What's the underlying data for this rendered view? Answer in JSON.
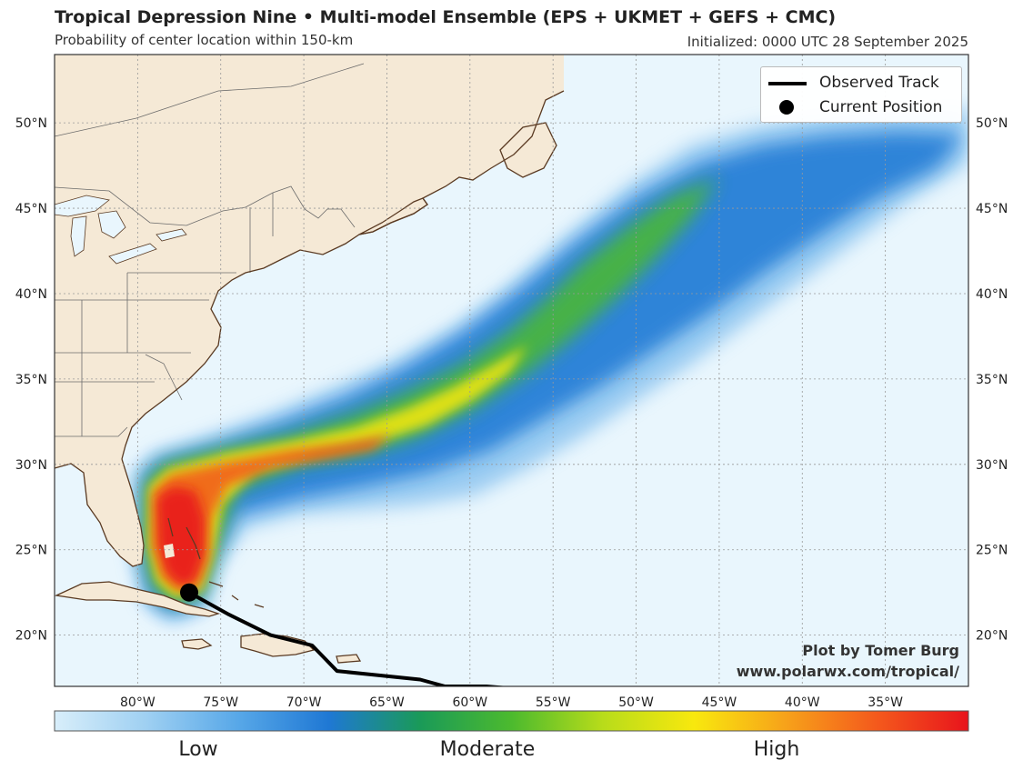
{
  "header": {
    "title": "Tropical Depression Nine • Multi-model Ensemble (EPS + UKMET + GEFS + CMC)",
    "subtitle": "Probability of center location within 150-km",
    "initialized": "Initialized: 0000 UTC 28 September 2025"
  },
  "legend": {
    "observed_track": "Observed Track",
    "current_position": "Current Position"
  },
  "credit": {
    "line1": "Plot by Tomer Burg",
    "line2": "www.polarwx.com/tropical/"
  },
  "axes": {
    "lat_labels": [
      "20°N",
      "25°N",
      "30°N",
      "35°N",
      "40°N",
      "45°N",
      "50°N"
    ],
    "lat_values": [
      20,
      25,
      30,
      35,
      40,
      45,
      50
    ],
    "lon_labels": [
      "80°W",
      "75°W",
      "70°W",
      "65°W",
      "60°W",
      "55°W",
      "50°W",
      "45°W",
      "40°W",
      "35°W"
    ],
    "lon_values": [
      -80,
      -75,
      -70,
      -65,
      -60,
      -55,
      -50,
      -45,
      -40,
      -35
    ],
    "lon_range": [
      -85,
      -30
    ],
    "lat_range": [
      17,
      54
    ]
  },
  "colorbar": {
    "low": "Low",
    "moderate": "Moderate",
    "high": "High",
    "colors": [
      "#d8eefa",
      "#9fd0f2",
      "#58a8e8",
      "#1f78d4",
      "#1a9a58",
      "#4cba2e",
      "#b8dc1a",
      "#f8e80e",
      "#f7a21a",
      "#f4591c",
      "#e8141c"
    ]
  },
  "colors": {
    "ocean": "#e9f6fd",
    "land": "#f5e9d6",
    "coast": "#5a3a22",
    "border": "#6b6b6b",
    "grid": "#999999"
  },
  "current_position": {
    "lon": -76.9,
    "lat": 22.5
  },
  "observed_track": [
    {
      "lon": -56.5,
      "lat": 16.8
    },
    {
      "lon": -59.0,
      "lat": 17.0
    },
    {
      "lon": -61.5,
      "lat": 17.0
    },
    {
      "lon": -63.0,
      "lat": 17.4
    },
    {
      "lon": -66.0,
      "lat": 17.7
    },
    {
      "lon": -68.0,
      "lat": 17.9
    },
    {
      "lon": -69.5,
      "lat": 19.4
    },
    {
      "lon": -72.0,
      "lat": 20.0
    },
    {
      "lon": -74.5,
      "lat": 21.2
    },
    {
      "lon": -76.9,
      "lat": 22.5
    }
  ]
}
